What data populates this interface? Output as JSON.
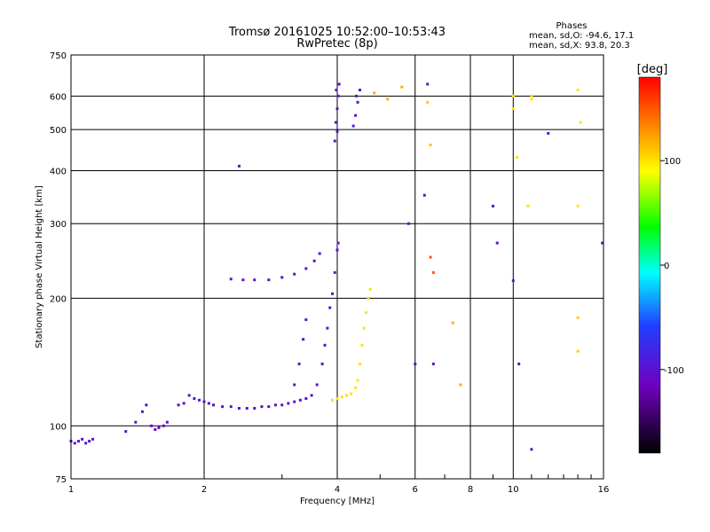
{
  "chart_data": {
    "type": "scatter",
    "title": "Tromsø 20161025 10:52:00–10:53:43",
    "subtitle": "RwPretec (8p)",
    "xlabel": "Frequency [MHz]",
    "ylabel": "Stationary phase Virtual Height [km]",
    "xscale": "log",
    "yscale": "log",
    "xlim": [
      1,
      16
    ],
    "ylim": [
      75,
      750
    ],
    "x_ticks": [
      1,
      2,
      4,
      6,
      8,
      10,
      16
    ],
    "y_ticks": [
      75,
      100,
      200,
      300,
      400,
      500,
      600,
      750
    ],
    "grid": true,
    "phase_info": {
      "heading": "Phases",
      "o_line": "mean, sd,O: -94.6, 17.1",
      "x_line": "mean, sd,X: 93.8, 20.3"
    },
    "colorbar": {
      "label": "[deg]",
      "range": [
        -180,
        180
      ],
      "ticks": [
        100,
        0,
        -100
      ]
    },
    "series": [
      {
        "points": [
          [
            1.0,
            92,
            -100
          ],
          [
            1.02,
            91,
            -100
          ],
          [
            1.04,
            92,
            -100
          ],
          [
            1.06,
            93,
            -100
          ],
          [
            1.08,
            91,
            -100
          ],
          [
            1.1,
            92,
            -100
          ],
          [
            1.12,
            93,
            -100
          ],
          [
            1.33,
            97,
            -100
          ],
          [
            1.4,
            102,
            -100
          ],
          [
            1.45,
            108,
            -100
          ],
          [
            1.48,
            112,
            -100
          ],
          [
            1.52,
            100,
            -110
          ],
          [
            1.55,
            98,
            -110
          ],
          [
            1.58,
            99,
            -110
          ],
          [
            1.62,
            100,
            -105
          ],
          [
            1.65,
            102,
            -100
          ],
          [
            1.75,
            112,
            -100
          ],
          [
            1.8,
            113,
            -100
          ],
          [
            1.85,
            118,
            -100
          ],
          [
            1.9,
            116,
            -100
          ],
          [
            1.95,
            115,
            -100
          ],
          [
            2.0,
            114,
            -100
          ],
          [
            2.05,
            113,
            -100
          ],
          [
            2.1,
            112,
            -100
          ],
          [
            2.2,
            111,
            -100
          ],
          [
            2.3,
            111,
            -100
          ],
          [
            2.4,
            110,
            -100
          ],
          [
            2.5,
            110,
            -100
          ],
          [
            2.6,
            110,
            -100
          ],
          [
            2.7,
            111,
            -100
          ],
          [
            2.8,
            111,
            -100
          ],
          [
            2.9,
            112,
            -100
          ],
          [
            3.0,
            112,
            -100
          ],
          [
            3.1,
            113,
            -100
          ],
          [
            3.2,
            114,
            -100
          ],
          [
            3.3,
            115,
            -100
          ],
          [
            3.4,
            116,
            -100
          ],
          [
            3.5,
            118,
            -100
          ],
          [
            3.6,
            125,
            -100
          ],
          [
            3.7,
            140,
            -100
          ],
          [
            3.75,
            155,
            -100
          ],
          [
            3.8,
            170,
            -100
          ],
          [
            3.85,
            190,
            -100
          ],
          [
            3.9,
            205,
            -100
          ],
          [
            3.95,
            230,
            -100
          ],
          [
            4.0,
            260,
            -100
          ],
          [
            4.02,
            270,
            -100
          ],
          [
            3.2,
            125,
            -100
          ],
          [
            3.28,
            140,
            -100
          ],
          [
            3.35,
            160,
            -100
          ],
          [
            3.4,
            178,
            -100
          ],
          [
            2.3,
            222,
            -100
          ],
          [
            2.45,
            221,
            -100
          ],
          [
            2.6,
            221,
            -100
          ],
          [
            2.8,
            221,
            -100
          ],
          [
            3.0,
            224,
            -100
          ],
          [
            3.2,
            228,
            -100
          ],
          [
            3.4,
            235,
            -100
          ],
          [
            3.55,
            245,
            -100
          ],
          [
            3.65,
            255,
            -100
          ],
          [
            3.95,
            470,
            -100
          ],
          [
            3.97,
            520,
            -100
          ],
          [
            4.0,
            560,
            -100
          ],
          [
            4.02,
            600,
            -100
          ],
          [
            4.04,
            640,
            -100
          ],
          [
            3.98,
            620,
            -100
          ],
          [
            4.0,
            495,
            -100
          ],
          [
            4.35,
            510,
            -95
          ],
          [
            4.4,
            540,
            -95
          ],
          [
            4.45,
            580,
            -95
          ],
          [
            4.5,
            620,
            -95
          ],
          [
            4.42,
            600,
            -95
          ],
          [
            2.4,
            410,
            -100
          ],
          [
            6.4,
            640,
            -100
          ],
          [
            5.8,
            300,
            -100
          ],
          [
            6.3,
            350,
            -100
          ],
          [
            6.0,
            140,
            -100
          ],
          [
            6.6,
            140,
            -100
          ],
          [
            9.0,
            330,
            -100
          ],
          [
            9.2,
            270,
            -100
          ],
          [
            10.0,
            220,
            -100
          ],
          [
            10.3,
            140,
            -100
          ],
          [
            11.0,
            88,
            -100
          ],
          [
            12.0,
            490,
            -100
          ],
          [
            15.9,
            270,
            -100
          ],
          [
            3.9,
            115,
            100
          ],
          [
            4.0,
            116,
            100
          ],
          [
            4.1,
            117,
            100
          ],
          [
            4.2,
            118,
            100
          ],
          [
            4.3,
            119,
            100
          ],
          [
            4.4,
            123,
            100
          ],
          [
            4.45,
            128,
            100
          ],
          [
            4.5,
            140,
            100
          ],
          [
            4.55,
            155,
            100
          ],
          [
            4.6,
            170,
            100
          ],
          [
            4.65,
            185,
            100
          ],
          [
            4.7,
            200,
            100
          ],
          [
            4.75,
            210,
            100
          ],
          [
            4.85,
            610,
            120
          ],
          [
            5.2,
            590,
            120
          ],
          [
            5.6,
            630,
            120
          ],
          [
            6.4,
            580,
            110
          ],
          [
            6.5,
            460,
            110
          ],
          [
            10.0,
            560,
            100
          ],
          [
            10.2,
            430,
            100
          ],
          [
            10.8,
            330,
            100
          ],
          [
            11.0,
            590,
            100
          ],
          [
            14.0,
            620,
            100
          ],
          [
            14.2,
            520,
            100
          ],
          [
            14.0,
            330,
            100
          ],
          [
            14.0,
            180,
            110
          ],
          [
            14.0,
            150,
            110
          ],
          [
            7.3,
            175,
            120
          ],
          [
            7.6,
            125,
            120
          ],
          [
            6.5,
            250,
            150
          ],
          [
            6.6,
            230,
            150
          ],
          [
            10.0,
            600,
            100
          ],
          [
            11.0,
            600,
            100
          ]
        ]
      }
    ]
  }
}
